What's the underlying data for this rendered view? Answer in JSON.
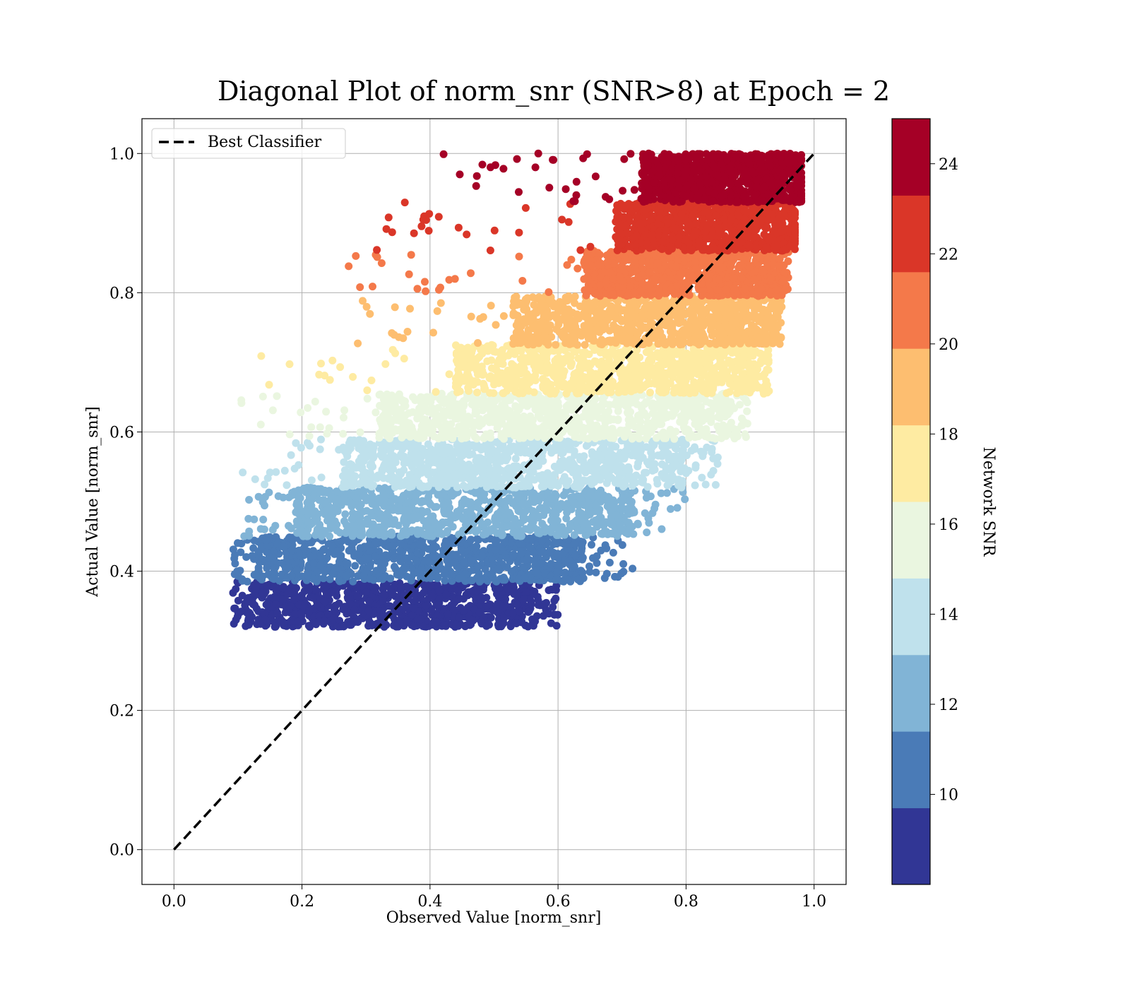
{
  "chart_data": {
    "type": "scatter",
    "title": "Diagonal Plot of norm_snr (SNR>8) at Epoch = 2",
    "xlabel": "Observed Value [norm_snr]",
    "ylabel": "Actual Value [norm_snr]",
    "xlim": [
      -0.05,
      1.05
    ],
    "ylim": [
      -0.05,
      1.05
    ],
    "x_ticks": [
      "0.0",
      "0.2",
      "0.4",
      "0.6",
      "0.8",
      "1.0"
    ],
    "y_ticks": [
      "0.0",
      "0.2",
      "0.4",
      "0.6",
      "0.8",
      "1.0"
    ],
    "grid": true,
    "legend": {
      "placement": "upper-left",
      "entries": [
        "Best Classifier"
      ]
    },
    "reference_line": {
      "name": "Best Classifier",
      "style": "dashed",
      "color": "#000000",
      "x": [
        0,
        1
      ],
      "y": [
        0,
        1
      ]
    },
    "colorbar": {
      "label": "Network SNR",
      "range": [
        8,
        25
      ],
      "tick_values": [
        10,
        12,
        14,
        16,
        18,
        20,
        22,
        24
      ],
      "ticks": [
        "10",
        "12",
        "14",
        "16",
        "18",
        "20",
        "22",
        "24"
      ],
      "colormap": "RdYlBu_r (discrete)",
      "bins": [
        {
          "snr_min": 8,
          "snr_max": 9.7,
          "color": "#313695"
        },
        {
          "snr_min": 9.7,
          "snr_max": 11.4,
          "color": "#4a7bb7"
        },
        {
          "snr_min": 11.4,
          "snr_max": 13.1,
          "color": "#81b4d6"
        },
        {
          "snr_min": 13.1,
          "snr_max": 14.8,
          "color": "#bfe1ec"
        },
        {
          "snr_min": 14.8,
          "snr_max": 16.5,
          "color": "#eaf6e0"
        },
        {
          "snr_min": 16.5,
          "snr_max": 18.2,
          "color": "#feeba2"
        },
        {
          "snr_min": 18.2,
          "snr_max": 19.9,
          "color": "#fdbe70"
        },
        {
          "snr_min": 19.9,
          "snr_max": 21.6,
          "color": "#f4794a"
        },
        {
          "snr_min": 21.6,
          "snr_max": 23.3,
          "color": "#da3628"
        },
        {
          "snr_min": 23.3,
          "snr_max": 25,
          "color": "#a50026"
        }
      ]
    },
    "scatter_bands": [
      {
        "color": "#313695",
        "y_range": [
          0.32,
          0.385
        ],
        "x_core": [
          0.11,
          0.56
        ],
        "x_sparse": [
          0.09,
          0.6
        ]
      },
      {
        "color": "#4a7bb7",
        "y_range": [
          0.385,
          0.45
        ],
        "x_core": [
          0.13,
          0.64
        ],
        "x_sparse": [
          0.09,
          0.73
        ]
      },
      {
        "color": "#81b4d6",
        "y_range": [
          0.45,
          0.52
        ],
        "x_core": [
          0.19,
          0.72
        ],
        "x_sparse": [
          0.1,
          0.8
        ]
      },
      {
        "color": "#bfe1ec",
        "y_range": [
          0.52,
          0.59
        ],
        "x_core": [
          0.26,
          0.8
        ],
        "x_sparse": [
          0.1,
          0.85
        ]
      },
      {
        "color": "#eaf6e0",
        "y_range": [
          0.59,
          0.655
        ],
        "x_core": [
          0.32,
          0.87
        ],
        "x_sparse": [
          0.1,
          0.9
        ]
      },
      {
        "color": "#feeba2",
        "y_range": [
          0.655,
          0.725
        ],
        "x_core": [
          0.44,
          0.92
        ],
        "x_sparse": [
          0.13,
          0.93
        ]
      },
      {
        "color": "#fdbe70",
        "y_range": [
          0.725,
          0.795
        ],
        "x_core": [
          0.53,
          0.94
        ],
        "x_sparse": [
          0.28,
          0.95
        ]
      },
      {
        "color": "#f4794a",
        "y_range": [
          0.795,
          0.86
        ],
        "x_core": [
          0.64,
          0.95
        ],
        "x_sparse": [
          0.27,
          0.96
        ]
      },
      {
        "color": "#da3628",
        "y_range": [
          0.86,
          0.93
        ],
        "x_core": [
          0.69,
          0.97
        ],
        "x_sparse": [
          0.28,
          0.97
        ]
      },
      {
        "color": "#a50026",
        "y_range": [
          0.93,
          1.0
        ],
        "x_core": [
          0.73,
          0.98
        ],
        "x_sparse": [
          0.42,
          0.98
        ]
      }
    ]
  }
}
